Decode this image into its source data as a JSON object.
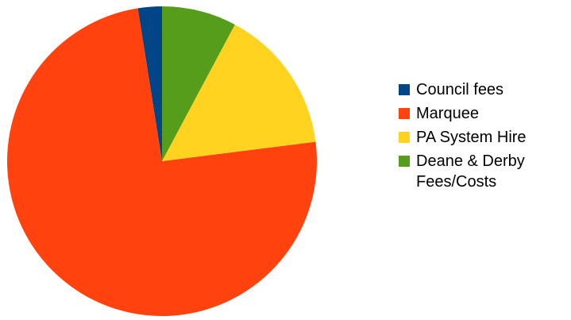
{
  "chart_data": {
    "type": "pie",
    "start_angle_deg": -90,
    "direction": "counterclockwise",
    "slices": [
      {
        "label": "Council fees",
        "value": 2.5,
        "color": "#004586"
      },
      {
        "label": "Marquee",
        "value": 74.5,
        "color": "#ff420e"
      },
      {
        "label": "PA System Hire",
        "value": 15.2,
        "color": "#ffd320"
      },
      {
        "label": "Deane & Derby Fees/Costs",
        "value": 7.8,
        "color": "#579d1c"
      }
    ],
    "legend_position": "right"
  },
  "legend": {
    "items": [
      {
        "label": "Council fees"
      },
      {
        "label": "Marquee"
      },
      {
        "label": "PA System Hire"
      },
      {
        "label": "Deane & Derby Fees/Costs"
      }
    ]
  }
}
